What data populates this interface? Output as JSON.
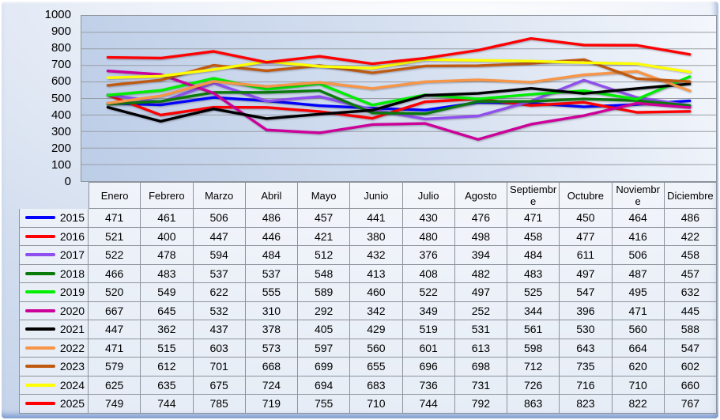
{
  "chart_data": {
    "type": "line",
    "title": "",
    "xlabel": "",
    "ylabel": "",
    "ylim": [
      0,
      1000
    ],
    "y_ticks": [
      "1000",
      "900",
      "800",
      "700",
      "600",
      "500",
      "400",
      "300",
      "200",
      "100",
      "0"
    ],
    "grid": "horizontal",
    "legend_position": "table-left-column",
    "categories": [
      "Enero",
      "Febrero",
      "Marzo",
      "Abril",
      "Mayo",
      "Junio",
      "Julio",
      "Agosto",
      "Septiembre",
      "Octubre",
      "Noviembre",
      "Diciembre"
    ],
    "series": [
      {
        "name": "2015",
        "color": "#0000FF",
        "values": [
          471,
          461,
          506,
          486,
          457,
          441,
          430,
          476,
          471,
          450,
          464,
          486
        ]
      },
      {
        "name": "2016",
        "color": "#FF0000",
        "values": [
          521,
          400,
          447,
          446,
          421,
          380,
          480,
          498,
          458,
          477,
          416,
          422
        ]
      },
      {
        "name": "2017",
        "color": "#8F4FEF",
        "values": [
          522,
          478,
          594,
          484,
          512,
          432,
          376,
          394,
          484,
          611,
          506,
          458
        ]
      },
      {
        "name": "2018",
        "color": "#0A7A0A",
        "values": [
          466,
          483,
          537,
          537,
          548,
          413,
          408,
          482,
          483,
          497,
          487,
          457
        ]
      },
      {
        "name": "2019",
        "color": "#00EE00",
        "values": [
          520,
          549,
          622,
          555,
          589,
          460,
          522,
          497,
          525,
          547,
          495,
          632
        ]
      },
      {
        "name": "2020",
        "color": "#CC0099",
        "values": [
          667,
          645,
          532,
          310,
          292,
          342,
          349,
          252,
          344,
          396,
          471,
          445
        ]
      },
      {
        "name": "2021",
        "color": "#000000",
        "values": [
          447,
          362,
          437,
          378,
          405,
          429,
          519,
          531,
          561,
          530,
          560,
          588
        ]
      },
      {
        "name": "2022",
        "color": "#F79646",
        "values": [
          471,
          515,
          603,
          573,
          597,
          560,
          601,
          613,
          598,
          643,
          664,
          547
        ]
      },
      {
        "name": "2023",
        "color": "#C05A11",
        "values": [
          579,
          612,
          701,
          668,
          699,
          655,
          696,
          698,
          712,
          735,
          620,
          602
        ]
      },
      {
        "name": "2024",
        "color": "#FFFF00",
        "values": [
          625,
          635,
          675,
          724,
          694,
          683,
          736,
          731,
          726,
          716,
          710,
          660
        ]
      },
      {
        "name": "2025",
        "color": "#FF0000",
        "values": [
          749,
          744,
          785,
          719,
          755,
          710,
          744,
          792,
          863,
          823,
          822,
          767
        ]
      }
    ],
    "style": {
      "gridline_color": "#989da4",
      "table_border_color": "#8d929b",
      "plot_bg_light": "#f4f7fc",
      "plot_bg_dark": "#bccde7",
      "frame_edge_blue": "#7494cb"
    }
  }
}
